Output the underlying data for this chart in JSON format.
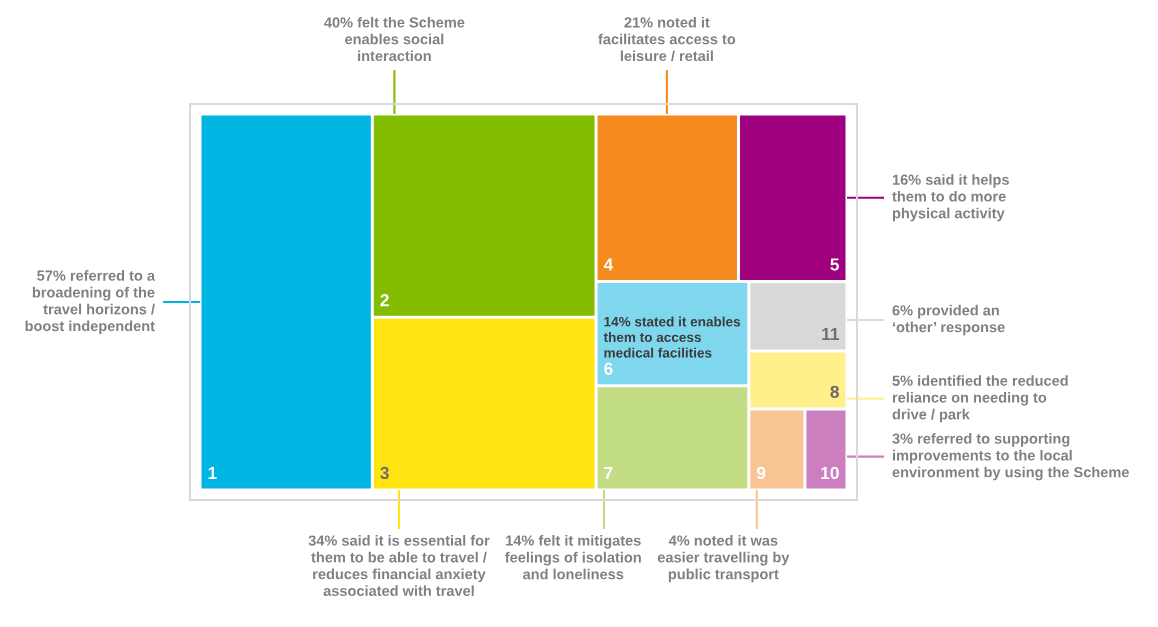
{
  "chart_data": {
    "type": "other",
    "categories": [
      "1",
      "2",
      "3",
      "4",
      "5",
      "6",
      "7",
      "11",
      "8",
      "9",
      "10"
    ],
    "values": [
      57,
      40,
      34,
      21,
      16,
      14,
      14,
      6,
      5,
      4,
      3
    ],
    "colors": [
      "#00b5e2",
      "#84bd00",
      "#ffe40f",
      "#f58a1f",
      "#9e007e",
      "#7fd7ee",
      "#c2dd83",
      "#d9d9d9",
      "#fff08b",
      "#f9c493",
      "#cc7fbf"
    ],
    "value_labels": [
      "57% referred to a\nbroadening of the\ntravel horizons /\nboost independent",
      "40% felt the Scheme\nenables social\ninteraction",
      "34% said it is essential for\nthem to be able to travel /\nreduces financial anxiety\nassociated with travel",
      "21% noted it\nfacilitates access to\nleisure / retail",
      "16% said it helps\nthem to do more\nphysical activity",
      "14% stated it enables\nthem to access\nmedical facilities",
      "14% felt it mitigates\nfeelings of isolation\nand loneliness",
      "6% provided an\n‘other’ response",
      "5% identified the reduced\nreliance on needing to\ndrive / park",
      "4% noted it was\neasier travelling by\npublic transport",
      "3% referred to supporting\nimprovements to the local\nenvironment by using the Scheme"
    ]
  }
}
